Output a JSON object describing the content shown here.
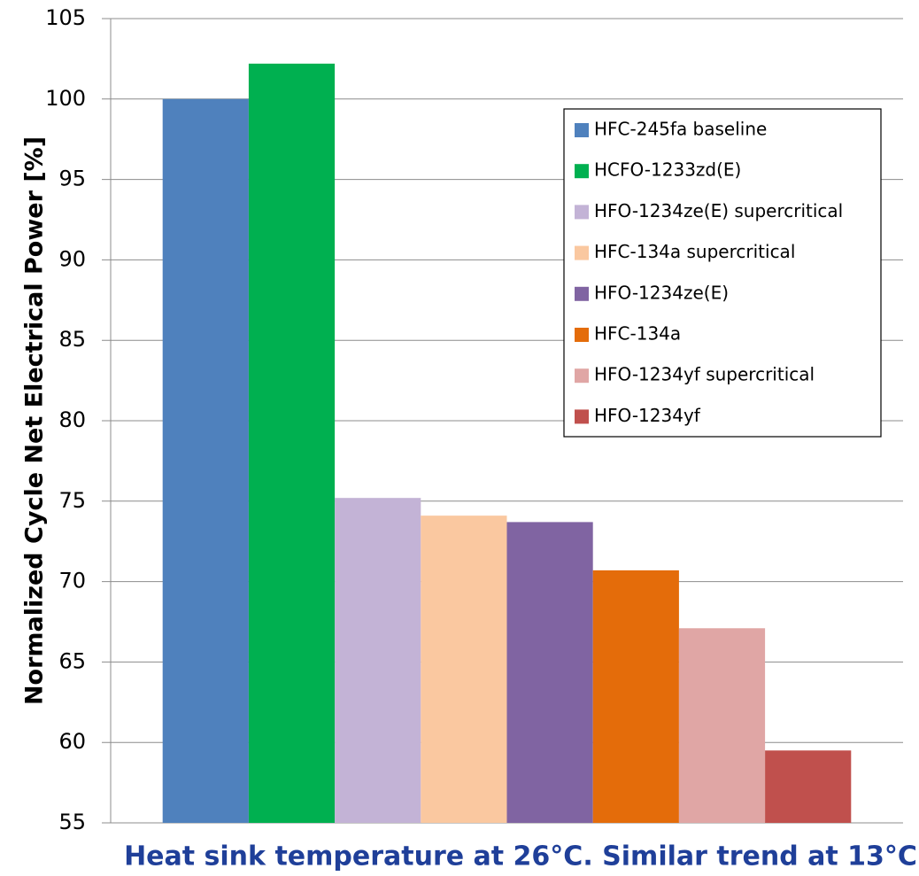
{
  "chart_data": {
    "type": "bar",
    "ylabel": "Normalized Cycle Net Electrical Power [%]",
    "xlabel": "Heat sink temperature at 26°C. Similar trend at 13°C",
    "categories": [
      null
    ],
    "series": [
      {
        "name": "HFC-245fa baseline",
        "color": "#4f81bd",
        "values": [
          100
        ]
      },
      {
        "name": "HCFO-1233zd(E)",
        "color": "#00b050",
        "values": [
          102.2
        ]
      },
      {
        "name": "HFO-1234ze(E) supercritical",
        "color": "#c3b3d6",
        "values": [
          75.2
        ]
      },
      {
        "name": "HFC-134a supercritical",
        "color": "#fac8a0",
        "values": [
          74.1
        ]
      },
      {
        "name": "HFO-1234ze(E)",
        "color": "#8064a2",
        "values": [
          73.7
        ]
      },
      {
        "name": "HFC-134a",
        "color": "#e46c0a",
        "values": [
          70.7
        ]
      },
      {
        "name": "HFO-1234yf supercritical",
        "color": "#e0a6a5",
        "values": [
          67.1
        ]
      },
      {
        "name": "HFO-1234yf",
        "color": "#c0504d",
        "values": [
          59.5
        ]
      }
    ],
    "ylim": [
      55,
      105
    ],
    "yticks": [
      55,
      60,
      65,
      70,
      75,
      80,
      85,
      90,
      95,
      100,
      105
    ],
    "grid": true,
    "legend": "upper right"
  }
}
